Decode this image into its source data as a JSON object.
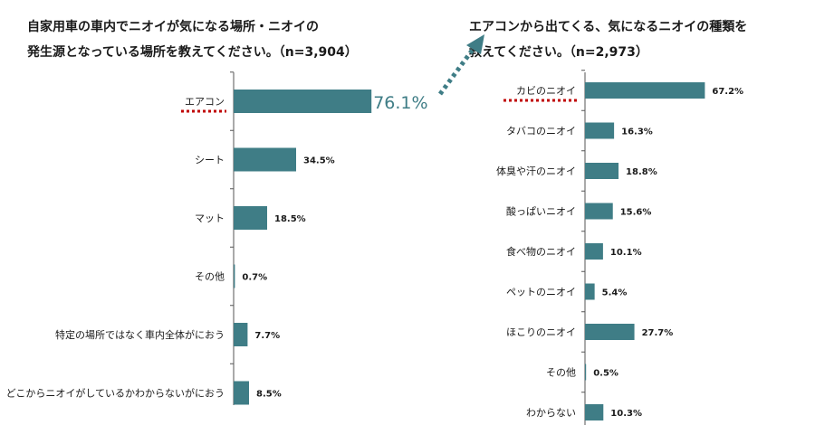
{
  "colors": {
    "bar": "#3f7d86",
    "axis": "#555555",
    "highlight": "#c00000",
    "arrow": "#3f7d86"
  },
  "chart_data": [
    {
      "type": "bar",
      "orientation": "horizontal",
      "title_lines": [
        "自家用車の車内でニオイが気になる場所・ニオイの",
        "発生源となっている場所を教えてください。（n=3,904）"
      ],
      "categories": [
        "エアコン",
        "シート",
        "マット",
        "その他",
        "特定の場所ではなく車内全体がにおう",
        "どこからニオイがしているかわからないがにおう"
      ],
      "values": [
        76.1,
        34.5,
        18.5,
        0.7,
        7.7,
        8.5
      ],
      "value_labels": [
        "76.1%",
        "34.5%",
        "18.5%",
        "0.7%",
        "7.7%",
        "8.5%"
      ],
      "highlight_index": 0
    },
    {
      "type": "bar",
      "orientation": "horizontal",
      "title_lines": [
        "エアコンから出てくる、気になるニオイの種類を",
        "教えてください。（n=2,973）"
      ],
      "categories": [
        "カビのニオイ",
        "タバコのニオイ",
        "体臭や汗のニオイ",
        "酸っぱいニオイ",
        "食べ物のニオイ",
        "ペットのニオイ",
        "ほこりのニオイ",
        "その他",
        "わからない"
      ],
      "values": [
        67.2,
        16.3,
        18.8,
        15.6,
        10.1,
        5.4,
        27.7,
        0.5,
        10.3
      ],
      "value_labels": [
        "67.2%",
        "16.3%",
        "18.8%",
        "15.6%",
        "10.1%",
        "5.4%",
        "27.7%",
        "0.5%",
        "10.3%"
      ],
      "highlight_index": 0
    }
  ]
}
